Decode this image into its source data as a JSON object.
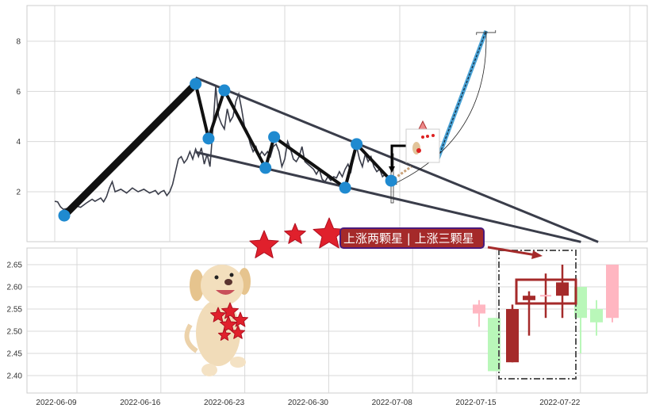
{
  "chart_data": [
    {
      "type": "line",
      "panel": "upper",
      "grid": true,
      "ylim": [
        0,
        9.4
      ],
      "yticks": [
        "2",
        "4",
        "6",
        "8"
      ],
      "xlim": [
        -10,
        207
      ],
      "price_line": [
        [
          0,
          1.62
        ],
        [
          1,
          1.6
        ],
        [
          2,
          1.4
        ],
        [
          3,
          1.3
        ],
        [
          5,
          1.35
        ],
        [
          7,
          1.45
        ],
        [
          9,
          1.38
        ],
        [
          11,
          1.55
        ],
        [
          13,
          1.7
        ],
        [
          14,
          1.62
        ],
        [
          16,
          1.75
        ],
        [
          17,
          1.6
        ],
        [
          18,
          1.8
        ],
        [
          19,
          2.15
        ],
        [
          20,
          2.4
        ],
        [
          21,
          2.0
        ],
        [
          23,
          2.1
        ],
        [
          25,
          1.95
        ],
        [
          27,
          2.15
        ],
        [
          29,
          2.0
        ],
        [
          31,
          2.1
        ],
        [
          33,
          1.95
        ],
        [
          35,
          2.05
        ],
        [
          36,
          1.9
        ],
        [
          37,
          2.0
        ],
        [
          38,
          2.05
        ],
        [
          39,
          1.85
        ],
        [
          40,
          2.0
        ],
        [
          41,
          2.3
        ],
        [
          42,
          2.8
        ],
        [
          43,
          3.3
        ],
        [
          44,
          3.4
        ],
        [
          45,
          3.15
        ],
        [
          46,
          3.3
        ],
        [
          47,
          3.6
        ],
        [
          48,
          3.3
        ],
        [
          49,
          3.7
        ],
        [
          50,
          3.4
        ],
        [
          51,
          3.75
        ],
        [
          52,
          3.1
        ],
        [
          53,
          3.5
        ],
        [
          54,
          3.0
        ],
        [
          55,
          4.5
        ],
        [
          56,
          6.2
        ],
        [
          57,
          5.0
        ],
        [
          58,
          4.7
        ],
        [
          59,
          4.5
        ],
        [
          60,
          5.3
        ],
        [
          61,
          4.8
        ],
        [
          62,
          5.0
        ],
        [
          63,
          5.6
        ],
        [
          64,
          5.9
        ],
        [
          65,
          5.3
        ],
        [
          66,
          4.6
        ],
        [
          67,
          4.4
        ],
        [
          68,
          3.9
        ],
        [
          69,
          3.6
        ],
        [
          70,
          3.8
        ],
        [
          71,
          3.4
        ],
        [
          72,
          3.6
        ],
        [
          73,
          3.45
        ],
        [
          74,
          3.6
        ],
        [
          75,
          3.4
        ],
        [
          76,
          3.8
        ],
        [
          77,
          3.9
        ],
        [
          78,
          3.6
        ],
        [
          79,
          3.0
        ],
        [
          80,
          3.3
        ],
        [
          81,
          4.0
        ],
        [
          82,
          3.7
        ],
        [
          83,
          3.3
        ],
        [
          84,
          3.2
        ],
        [
          85,
          3.4
        ],
        [
          86,
          3.8
        ],
        [
          87,
          3.2
        ],
        [
          88,
          3.1
        ],
        [
          89,
          3.0
        ],
        [
          90,
          2.9
        ],
        [
          91,
          2.7
        ],
        [
          92,
          2.9
        ],
        [
          93,
          2.5
        ],
        [
          94,
          2.4
        ],
        [
          95,
          2.6
        ],
        [
          96,
          2.45
        ],
        [
          97,
          2.6
        ],
        [
          98,
          2.55
        ],
        [
          99,
          2.8
        ],
        [
          100,
          2.6
        ],
        [
          101,
          2.9
        ],
        [
          102,
          3.1
        ],
        [
          103,
          2.8
        ],
        [
          104,
          3.4
        ],
        [
          105,
          3.8
        ],
        [
          106,
          3.3
        ],
        [
          107,
          3.0
        ],
        [
          108,
          3.5
        ],
        [
          109,
          3.2
        ],
        [
          110,
          3.4
        ],
        [
          111,
          3.0
        ],
        [
          112,
          2.8
        ],
        [
          113,
          2.9
        ],
        [
          114,
          2.6
        ],
        [
          115,
          2.7
        ],
        [
          116,
          2.4
        ],
        [
          117,
          2.5
        ],
        [
          118,
          2.35
        ],
        [
          119,
          2.3
        ]
      ],
      "zigzag": [
        [
          3.3,
          1.05
        ],
        [
          49,
          6.3
        ],
        [
          53.5,
          4.12
        ],
        [
          59,
          6.04
        ],
        [
          73.3,
          2.95
        ],
        [
          76.3,
          4.18
        ],
        [
          101,
          2.16
        ],
        [
          105,
          3.9
        ],
        [
          117,
          2.44
        ]
      ],
      "upper_trendline": [
        [
          49,
          6.55
        ],
        [
          189,
          0.0
        ]
      ],
      "lower_trendline": [
        [
          49,
          3.58
        ],
        [
          183,
          0.0
        ]
      ],
      "projection_line": [
        [
          133,
          3.23
        ],
        [
          150,
          8.41
        ]
      ],
      "projection_start": [
        [
          117,
          2.44
        ],
        [
          124,
          3.0
        ]
      ],
      "colors": {
        "price": "#3a3d4a",
        "zigzag": "#111111",
        "points": "#1f8ad0",
        "projection": "#4aa3d6"
      }
    },
    {
      "type": "candlestick",
      "panel": "lower",
      "grid": true,
      "ylim": [
        2.36,
        2.685
      ],
      "yticks": [
        "2.40",
        "2.45",
        "2.50",
        "2.55",
        "2.60",
        "2.65"
      ],
      "xticks": [
        "2022-06-09",
        "2022-06-16",
        "2022-06-23",
        "2022-06-30",
        "2022-07-08",
        "2022-07-15",
        "2022-07-22"
      ],
      "candles": [
        {
          "date": "2022-07-14",
          "open": 2.54,
          "high": 2.57,
          "low": 2.51,
          "close": 2.56,
          "style": "up-light"
        },
        {
          "date": "2022-07-15",
          "open": 2.53,
          "high": 2.53,
          "low": 2.41,
          "close": 2.41,
          "style": "down"
        },
        {
          "date": "2022-07-18",
          "open": 2.43,
          "high": 2.56,
          "low": 2.43,
          "close": 2.55,
          "style": "up-highlight"
        },
        {
          "date": "2022-07-19",
          "open": 2.57,
          "high": 2.59,
          "low": 2.49,
          "close": 2.58,
          "style": "up-highlight"
        },
        {
          "date": "2022-07-20",
          "open": 2.58,
          "high": 2.63,
          "low": 2.53,
          "close": 2.58,
          "style": "doji-highlight"
        },
        {
          "date": "2022-07-21",
          "open": 2.58,
          "high": 2.65,
          "low": 2.53,
          "close": 2.61,
          "style": "up-highlight"
        },
        {
          "date": "2022-07-22",
          "open": 2.6,
          "high": 2.6,
          "low": 2.45,
          "close": 2.53,
          "style": "down"
        },
        {
          "date": "2022-07-25",
          "open": 2.55,
          "high": 2.57,
          "low": 2.49,
          "close": 2.52,
          "style": "down"
        },
        {
          "date": "2022-07-26",
          "open": 2.53,
          "high": 2.65,
          "low": 2.52,
          "close": 2.65,
          "style": "up-light"
        }
      ],
      "colors": {
        "up-light": "#ffb6c1",
        "down": "#b9f7b9",
        "highlight": "#a52a2a"
      }
    }
  ],
  "annotation": {
    "label": "上涨两颗星 | 上涨三颗星",
    "label_bg": "#a52a2a",
    "label_border": "#4b1a7a"
  },
  "decorations": {
    "stars": "red-star-icon",
    "mascot": "dog-holding-stars-image"
  }
}
